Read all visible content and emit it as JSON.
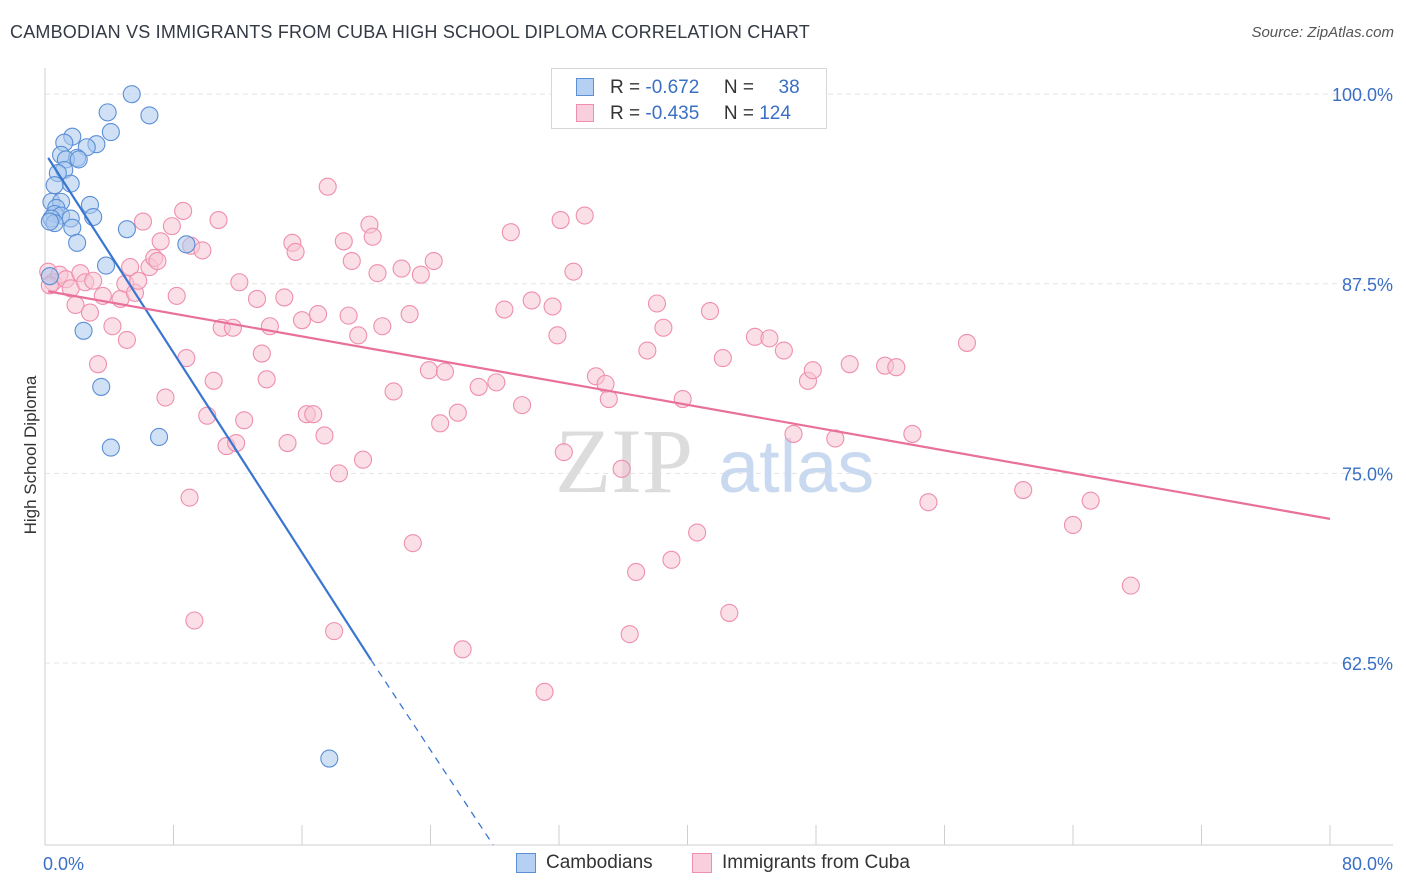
{
  "title": "CAMBODIAN VS IMMIGRANTS FROM CUBA HIGH SCHOOL DIPLOMA CORRELATION CHART",
  "source": "Source: ZipAtlas.com",
  "watermark": {
    "zip": "ZIP",
    "atlas": "atlas"
  },
  "colors": {
    "blue_fill": "#a9c8ef",
    "blue_stroke": "#5b8fd6",
    "blue_line": "#3a76d0",
    "pink_fill": "#f7c4d4",
    "pink_stroke": "#ee8fae",
    "pink_line": "#e8709a",
    "axis_text": "#3a6fc4",
    "grid": "#e4e4e4"
  },
  "legend_top": [
    {
      "series": "Cambodians",
      "r_label": "R =",
      "r_value": "-0.672",
      "n_label": "N =",
      "n_value": "38"
    },
    {
      "series": "Immigrants from Cuba",
      "r_label": "R =",
      "r_value": "-0.435",
      "n_label": "N =",
      "n_value": "124"
    }
  ],
  "chart_data": {
    "type": "scatter",
    "title": "CAMBODIAN VS IMMIGRANTS FROM CUBA HIGH SCHOOL DIPLOMA CORRELATION CHART",
    "xlabel": "",
    "ylabel": "High School Diploma",
    "xlim": [
      0,
      80
    ],
    "ylim": [
      50.5,
      101
    ],
    "x_tick_labels": [
      "0.0%",
      "80.0%"
    ],
    "y_ticks": [
      62.5,
      75.0,
      87.5,
      100.0
    ],
    "y_tick_labels": [
      "62.5%",
      "75.0%",
      "87.5%",
      "100.0%"
    ],
    "grid": true,
    "legend_position": "bottom",
    "series": [
      {
        "name": "Cambodians",
        "color": "#5b8fd6",
        "points": [
          [
            5.4,
            100.0
          ],
          [
            3.9,
            98.8
          ],
          [
            6.5,
            98.6
          ],
          [
            4.1,
            97.5
          ],
          [
            1.7,
            97.2
          ],
          [
            1.2,
            96.8
          ],
          [
            3.2,
            96.7
          ],
          [
            2.6,
            96.5
          ],
          [
            1.0,
            96.0
          ],
          [
            2.0,
            95.8
          ],
          [
            1.3,
            95.7
          ],
          [
            2.1,
            95.7
          ],
          [
            1.2,
            95.0
          ],
          [
            0.8,
            94.8
          ],
          [
            1.6,
            94.1
          ],
          [
            0.6,
            94.0
          ],
          [
            0.4,
            92.9
          ],
          [
            1.0,
            92.9
          ],
          [
            2.8,
            92.7
          ],
          [
            0.7,
            92.5
          ],
          [
            0.6,
            92.1
          ],
          [
            1.0,
            92.0
          ],
          [
            0.4,
            91.8
          ],
          [
            3.0,
            91.9
          ],
          [
            1.6,
            91.8
          ],
          [
            0.6,
            91.5
          ],
          [
            1.7,
            91.2
          ],
          [
            5.1,
            91.1
          ],
          [
            0.3,
            91.6
          ],
          [
            2.0,
            90.2
          ],
          [
            8.8,
            90.1
          ],
          [
            3.8,
            88.7
          ],
          [
            0.3,
            88.0
          ],
          [
            2.4,
            84.4
          ],
          [
            3.5,
            80.7
          ],
          [
            4.1,
            76.7
          ],
          [
            7.1,
            77.4
          ],
          [
            17.7,
            56.2
          ]
        ],
        "trend": {
          "x": [
            0.2,
            20.3
          ],
          "y": [
            95.8,
            62.7
          ],
          "dashed_to": {
            "x": 27.9,
            "y": 50.5
          }
        }
      },
      {
        "name": "Immigrants from Cuba",
        "color": "#ee8fae",
        "points": [
          [
            0.2,
            88.3
          ],
          [
            0.5,
            87.6
          ],
          [
            0.9,
            88.1
          ],
          [
            1.3,
            87.8
          ],
          [
            0.3,
            87.4
          ],
          [
            2.2,
            88.2
          ],
          [
            1.6,
            87.2
          ],
          [
            1.9,
            86.1
          ],
          [
            2.5,
            87.6
          ],
          [
            2.8,
            85.6
          ],
          [
            3.0,
            87.7
          ],
          [
            3.3,
            82.2
          ],
          [
            3.6,
            86.7
          ],
          [
            4.2,
            84.7
          ],
          [
            4.7,
            86.5
          ],
          [
            5.1,
            83.8
          ],
          [
            5.0,
            87.5
          ],
          [
            5.3,
            88.6
          ],
          [
            5.6,
            86.9
          ],
          [
            5.8,
            87.7
          ],
          [
            6.1,
            91.6
          ],
          [
            6.5,
            88.6
          ],
          [
            6.8,
            89.2
          ],
          [
            7.0,
            89.0
          ],
          [
            7.2,
            90.3
          ],
          [
            7.5,
            80.0
          ],
          [
            7.9,
            91.3
          ],
          [
            8.2,
            86.7
          ],
          [
            8.6,
            92.3
          ],
          [
            8.8,
            82.6
          ],
          [
            9.1,
            90.0
          ],
          [
            9.0,
            73.4
          ],
          [
            9.3,
            65.3
          ],
          [
            9.8,
            89.7
          ],
          [
            10.1,
            78.8
          ],
          [
            10.5,
            81.1
          ],
          [
            10.8,
            91.7
          ],
          [
            11.0,
            84.6
          ],
          [
            11.3,
            76.8
          ],
          [
            11.7,
            84.6
          ],
          [
            11.9,
            77.0
          ],
          [
            12.1,
            87.6
          ],
          [
            12.4,
            78.5
          ],
          [
            13.2,
            86.5
          ],
          [
            13.5,
            82.9
          ],
          [
            13.8,
            81.2
          ],
          [
            14.0,
            84.7
          ],
          [
            14.9,
            86.6
          ],
          [
            15.1,
            77.0
          ],
          [
            15.4,
            90.2
          ],
          [
            15.6,
            89.6
          ],
          [
            16.0,
            85.1
          ],
          [
            16.3,
            78.9
          ],
          [
            16.7,
            78.9
          ],
          [
            17.0,
            85.5
          ],
          [
            17.4,
            77.5
          ],
          [
            17.6,
            93.9
          ],
          [
            18.0,
            64.6
          ],
          [
            18.3,
            75.0
          ],
          [
            18.6,
            90.3
          ],
          [
            18.9,
            85.4
          ],
          [
            19.1,
            89.0
          ],
          [
            19.5,
            84.1
          ],
          [
            19.8,
            75.9
          ],
          [
            20.2,
            91.4
          ],
          [
            20.4,
            90.6
          ],
          [
            20.7,
            88.2
          ],
          [
            21.0,
            84.7
          ],
          [
            21.7,
            80.4
          ],
          [
            22.2,
            88.5
          ],
          [
            22.7,
            85.5
          ],
          [
            22.9,
            70.4
          ],
          [
            23.4,
            88.1
          ],
          [
            23.9,
            81.8
          ],
          [
            24.2,
            89.0
          ],
          [
            24.6,
            78.3
          ],
          [
            24.9,
            81.7
          ],
          [
            25.7,
            79.0
          ],
          [
            26.0,
            63.4
          ],
          [
            27.0,
            80.7
          ],
          [
            28.1,
            81.0
          ],
          [
            28.6,
            85.8
          ],
          [
            29.0,
            90.9
          ],
          [
            29.7,
            79.5
          ],
          [
            30.3,
            86.4
          ],
          [
            31.1,
            60.6
          ],
          [
            31.6,
            86.0
          ],
          [
            31.9,
            84.1
          ],
          [
            32.1,
            91.7
          ],
          [
            32.3,
            76.4
          ],
          [
            32.9,
            88.3
          ],
          [
            33.6,
            92.0
          ],
          [
            34.3,
            81.4
          ],
          [
            34.9,
            80.9
          ],
          [
            35.1,
            79.9
          ],
          [
            35.9,
            75.3
          ],
          [
            36.4,
            64.4
          ],
          [
            36.8,
            68.5
          ],
          [
            37.5,
            83.1
          ],
          [
            38.1,
            86.2
          ],
          [
            38.5,
            84.6
          ],
          [
            39.0,
            69.3
          ],
          [
            39.7,
            79.9
          ],
          [
            40.6,
            71.1
          ],
          [
            41.4,
            85.7
          ],
          [
            42.2,
            82.6
          ],
          [
            42.6,
            65.8
          ],
          [
            44.2,
            84.0
          ],
          [
            45.1,
            83.9
          ],
          [
            46.0,
            83.1
          ],
          [
            46.6,
            77.6
          ],
          [
            47.5,
            81.1
          ],
          [
            47.8,
            81.8
          ],
          [
            49.2,
            77.3
          ],
          [
            50.1,
            82.2
          ],
          [
            52.3,
            82.1
          ],
          [
            53.0,
            82.0
          ],
          [
            54.0,
            77.6
          ],
          [
            55.0,
            73.1
          ],
          [
            57.4,
            83.6
          ],
          [
            60.9,
            73.9
          ],
          [
            64.0,
            71.6
          ],
          [
            65.1,
            73.2
          ],
          [
            67.6,
            67.6
          ]
        ],
        "trend": {
          "x": [
            0.2,
            80.0
          ],
          "y": [
            87.0,
            72.0
          ]
        }
      }
    ]
  }
}
